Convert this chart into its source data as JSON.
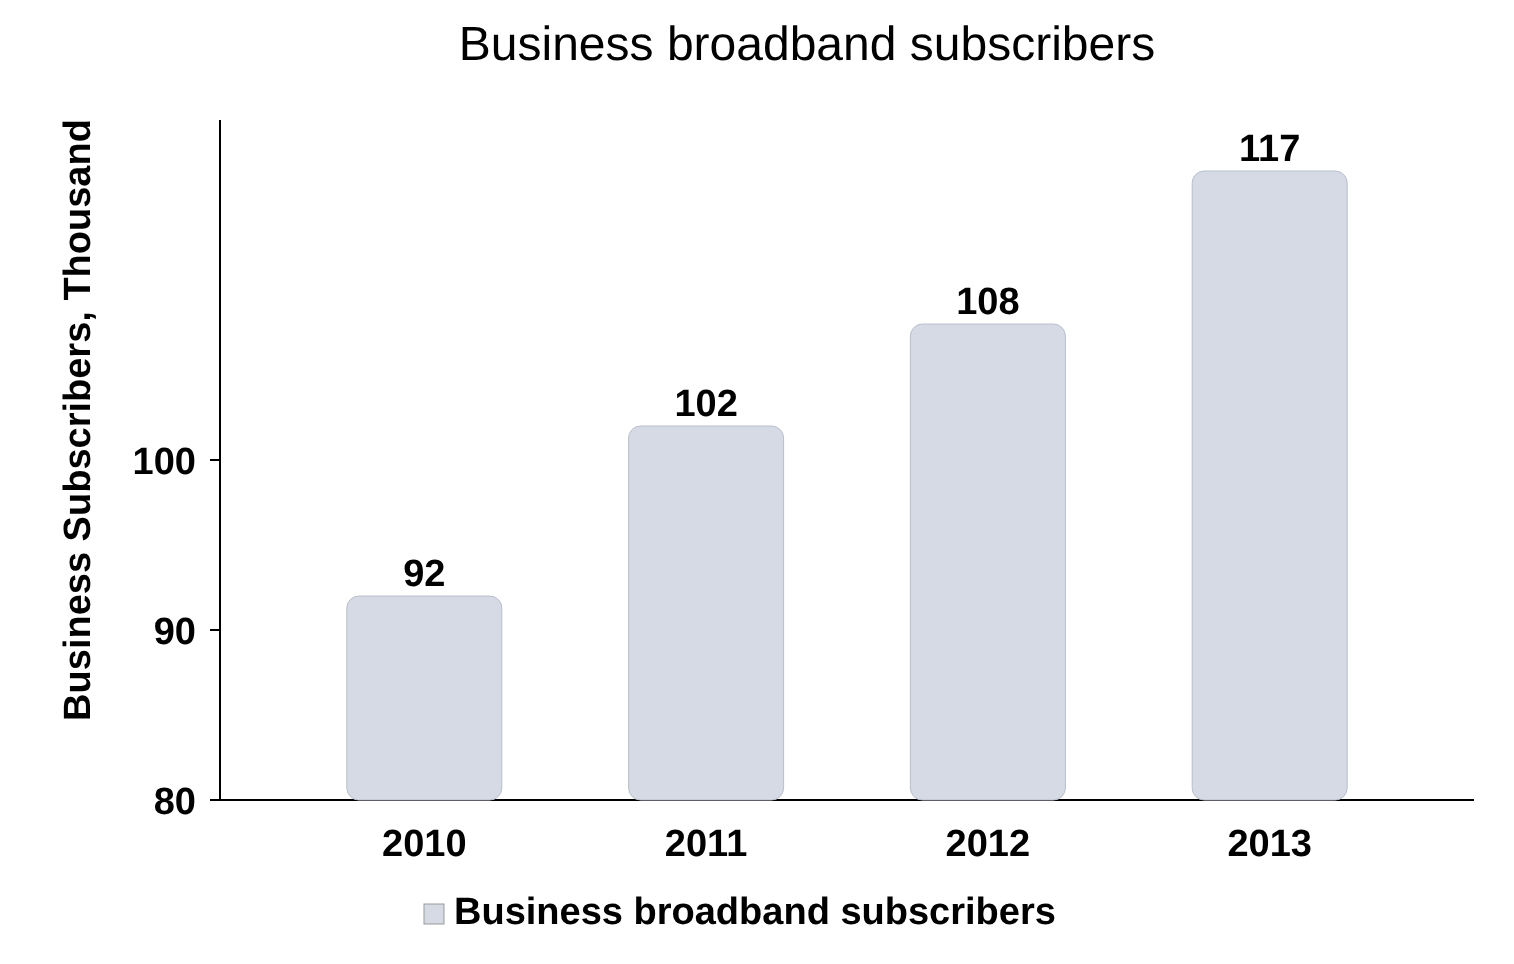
{
  "chart_data": {
    "type": "bar",
    "title": "Business  broadband subscribers",
    "ylabel": "Business Subscribers, Thousand",
    "categories": [
      "2010",
      "2011",
      "2012",
      "2013"
    ],
    "series": [
      {
        "name": "Business  broadband subscribers",
        "color": "#d5dae4",
        "values": [
          92,
          102,
          108,
          117
        ]
      }
    ],
    "ylim": [
      80,
      120
    ],
    "yticks": [
      80,
      90,
      100
    ],
    "data_labels": true,
    "legend": "bottom",
    "grid": false
  }
}
